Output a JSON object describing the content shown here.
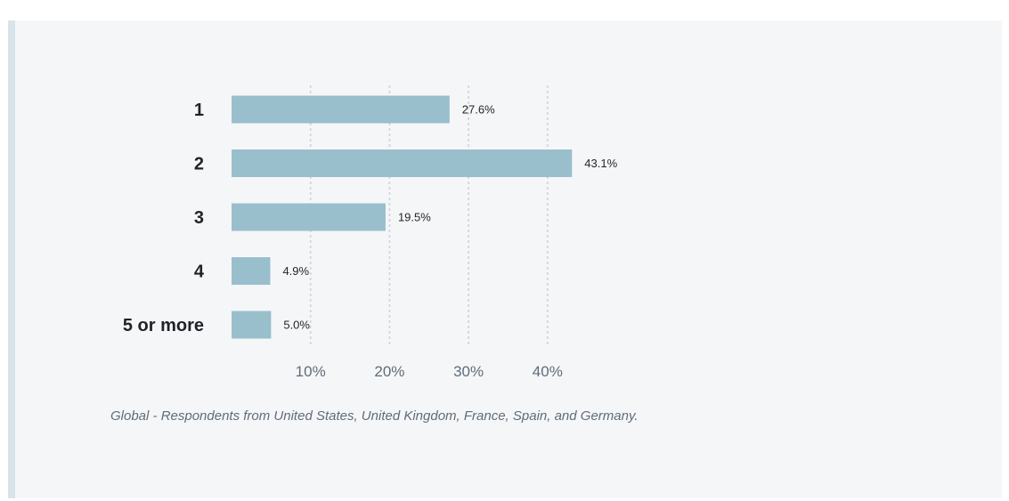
{
  "footnote": "Global - Respondents from United States, United Kingdom, France, Spain, and Germany.",
  "colors": {
    "bar": "#99bfcd",
    "category_label": "#1f2328",
    "value_label": "#1f2328",
    "tick_label": "#5f6d79",
    "grid": "#cfd5da",
    "panel_background": "#f5f6f8"
  },
  "chart_data": {
    "type": "bar",
    "orientation": "horizontal",
    "categories": [
      "1",
      "2",
      "3",
      "4",
      "5 or more"
    ],
    "values": [
      27.6,
      43.1,
      19.5,
      4.9,
      5.0
    ],
    "value_labels": [
      "27.6%",
      "43.1%",
      "19.5%",
      "4.9%",
      "5.0%"
    ],
    "x_ticks": [
      10,
      20,
      30,
      40
    ],
    "x_tick_labels": [
      "10%",
      "20%",
      "30%",
      "40%"
    ],
    "xlim": [
      0,
      50
    ],
    "grid": true,
    "grid_style": "dotted vertical",
    "legend": "none"
  }
}
